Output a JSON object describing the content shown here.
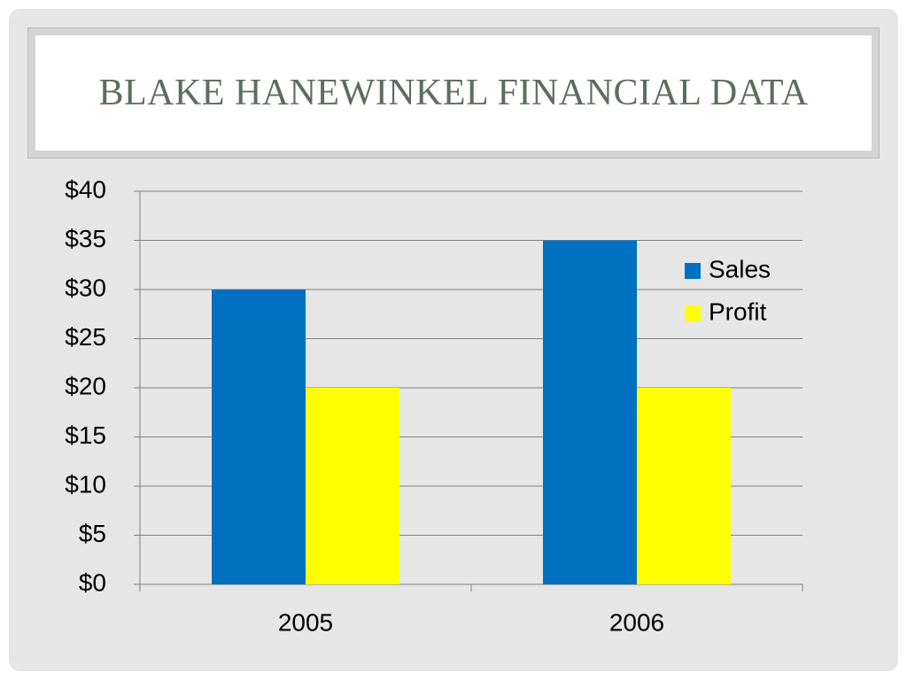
{
  "chart_data": {
    "type": "bar",
    "title": "BLAKE HANEWINKEL FINANCIAL DATA",
    "categories": [
      "2005",
      "2006"
    ],
    "series": [
      {
        "name": "Sales",
        "color": "#0070c0",
        "values": [
          30,
          35
        ]
      },
      {
        "name": "Profit",
        "color": "#ffff00",
        "values": [
          20,
          20
        ]
      }
    ],
    "ylim": [
      0,
      40
    ],
    "yticks": [
      {
        "value": 0,
        "label": "$0"
      },
      {
        "value": 5,
        "label": "$5"
      },
      {
        "value": 10,
        "label": "$10"
      },
      {
        "value": 15,
        "label": "$15"
      },
      {
        "value": 20,
        "label": "$20"
      },
      {
        "value": 25,
        "label": "$25"
      },
      {
        "value": 30,
        "label": "$30"
      },
      {
        "value": 35,
        "label": "$35"
      },
      {
        "value": 40,
        "label": "$40"
      }
    ],
    "grid": true,
    "legend": "right"
  }
}
